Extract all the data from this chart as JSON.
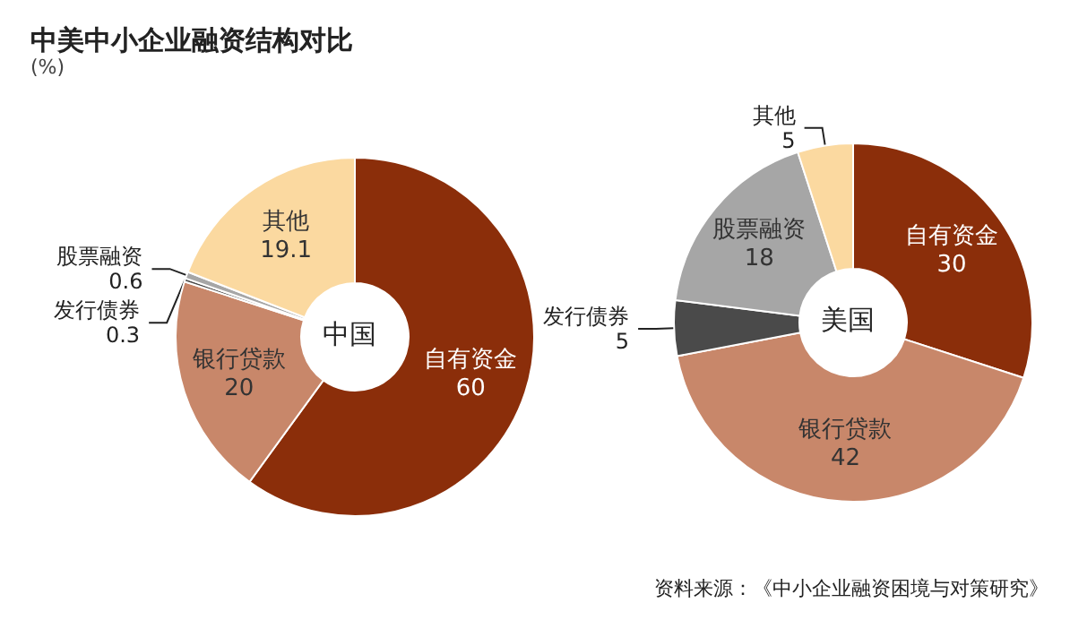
{
  "chart_data": [
    {
      "type": "donut",
      "title": "中美中小企业融资结构对比",
      "subtitle": "(%)",
      "annotations": [
        "中国"
      ],
      "categories": [
        "自有资金",
        "银行贷款",
        "发行债券",
        "股票融资",
        "其他"
      ],
      "values": [
        60,
        20,
        0.3,
        0.6,
        19.1
      ],
      "colors": [
        "#8b2e0a",
        "#c8876a",
        "#4a4a4a",
        "#a6a6a6",
        "#fbd9a0"
      ],
      "data_labels": true,
      "legend": false
    },
    {
      "type": "donut",
      "annotations": [
        "美国",
        "资料来源：《中小企业融资困境与对策研究》"
      ],
      "categories": [
        "自有资金",
        "银行贷款",
        "发行债券",
        "股票融资",
        "其他"
      ],
      "values": [
        30,
        42,
        5,
        18,
        5
      ],
      "colors": [
        "#8b2e0a",
        "#c8876a",
        "#4a4a4a",
        "#a6a6a6",
        "#fbd9a0"
      ],
      "data_labels": true,
      "legend": false
    }
  ]
}
